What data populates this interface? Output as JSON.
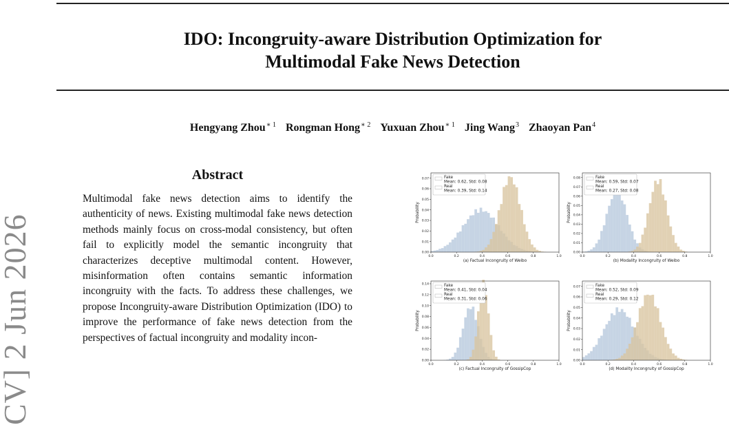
{
  "paper": {
    "title_line1": "IDO: Incongruity-aware Distribution Optimization for",
    "title_line2": "Multimodal Fake News Detection",
    "authors": [
      {
        "name": "Hengyang Zhou",
        "marks": "∗ 1"
      },
      {
        "name": "Rongman Hong",
        "marks": "∗ 2"
      },
      {
        "name": "Yuxuan Zhou",
        "marks": "∗ 1"
      },
      {
        "name": "Jing Wang",
        "marks": "3"
      },
      {
        "name": "Zhaoyan Pan",
        "marks": "4"
      }
    ],
    "arxiv_stamp": "CV]  2 Jun 2026",
    "abstract_heading": "Abstract",
    "abstract_text": "Multimodal fake news detection aims to identify the authenticity of news. Existing multimodal fake news detection methods mainly focus on cross-modal consistency, but often fail to explicitly model the semantic incongruity that characterizes deceptive multimodal content. However, misinformation often contains semantic information incongruity with the facts. To address these challenges, we propose Incongruity-aware Distribution Optimization (IDO) to improve the performance of fake news detection from the perspectives of factual incongruity and modality incon-"
  },
  "chart_data": [
    {
      "type": "histogram",
      "caption": "(a) Factual Incongruity of Weibo",
      "ylabel": "Probability",
      "xlim": [
        0.0,
        1.0
      ],
      "ylim": [
        0,
        0.075
      ],
      "xticks": [
        "0.0",
        "0.2",
        "0.4",
        "0.6",
        "0.8",
        "1.0"
      ],
      "yticks": [
        "0.00",
        "0.01",
        "0.02",
        "0.03",
        "0.04",
        "0.05",
        "0.06",
        "0.07"
      ],
      "legend_position": "upper-left",
      "series": [
        {
          "name": "Fake",
          "stat": "Mean: 0.62, Std: 0.08",
          "mean": 0.62,
          "std": 0.08,
          "peak": 0.071,
          "color": "#d8c49f"
        },
        {
          "name": "Real",
          "stat": "Mean: 0.39, Std: 0.14",
          "mean": 0.39,
          "std": 0.14,
          "peak": 0.04,
          "color": "#b6c8dc"
        }
      ]
    },
    {
      "type": "histogram",
      "caption": "(b) Modality Incongruity of Weibo",
      "ylabel": "Probability",
      "xlim": [
        0.0,
        1.0
      ],
      "ylim": [
        0,
        0.085
      ],
      "xticks": [
        "0.0",
        "0.2",
        "0.4",
        "0.6",
        "0.8",
        "1.0"
      ],
      "yticks": [
        "0.00",
        "0.01",
        "0.02",
        "0.03",
        "0.04",
        "0.05",
        "0.06",
        "0.07",
        "0.08"
      ],
      "legend_position": "upper-left",
      "series": [
        {
          "name": "Fake",
          "stat": "Mean: 0.59, Std: 0.07",
          "mean": 0.59,
          "std": 0.07,
          "peak": 0.077,
          "color": "#d8c49f"
        },
        {
          "name": "Real",
          "stat": "Mean: 0.27, Std: 0.08",
          "mean": 0.27,
          "std": 0.08,
          "peak": 0.066,
          "color": "#b6c8dc"
        }
      ]
    },
    {
      "type": "histogram",
      "caption": "(c) Factual Incongruity of GossipCop",
      "ylabel": "Probability",
      "xlim": [
        0.0,
        1.0
      ],
      "ylim": [
        0,
        0.145
      ],
      "xticks": [
        "0.0",
        "0.2",
        "0.4",
        "0.6",
        "0.8",
        "1.0"
      ],
      "yticks": [
        "0.00",
        "0.02",
        "0.04",
        "0.06",
        "0.08",
        "0.10",
        "0.12",
        "0.14"
      ],
      "legend_position": "upper-left",
      "series": [
        {
          "name": "Fake",
          "stat": "Mean: 0.41, Std: 0.04",
          "mean": 0.41,
          "std": 0.04,
          "peak": 0.14,
          "color": "#d8c49f"
        },
        {
          "name": "Real",
          "stat": "Mean: 0.31, Std: 0.06",
          "mean": 0.31,
          "std": 0.06,
          "peak": 0.098,
          "color": "#b6c8dc"
        }
      ]
    },
    {
      "type": "histogram",
      "caption": "(d) Modality Incongruity of GossipCop",
      "ylabel": "Probability",
      "xlim": [
        0.0,
        1.0
      ],
      "ylim": [
        0,
        0.075
      ],
      "xticks": [
        "0.0",
        "0.2",
        "0.4",
        "0.6",
        "0.8",
        "1.0"
      ],
      "yticks": [
        "0.00",
        "0.01",
        "0.02",
        "0.03",
        "0.04",
        "0.05",
        "0.06",
        "0.07"
      ],
      "legend_position": "upper-left",
      "series": [
        {
          "name": "Fake",
          "stat": "Mean: 0.52, Std: 0.09",
          "mean": 0.52,
          "std": 0.09,
          "peak": 0.063,
          "color": "#d8c49f"
        },
        {
          "name": "Real",
          "stat": "Mean: 0.29, Std: 0.12",
          "mean": 0.29,
          "std": 0.12,
          "peak": 0.048,
          "color": "#b6c8dc"
        }
      ]
    }
  ]
}
